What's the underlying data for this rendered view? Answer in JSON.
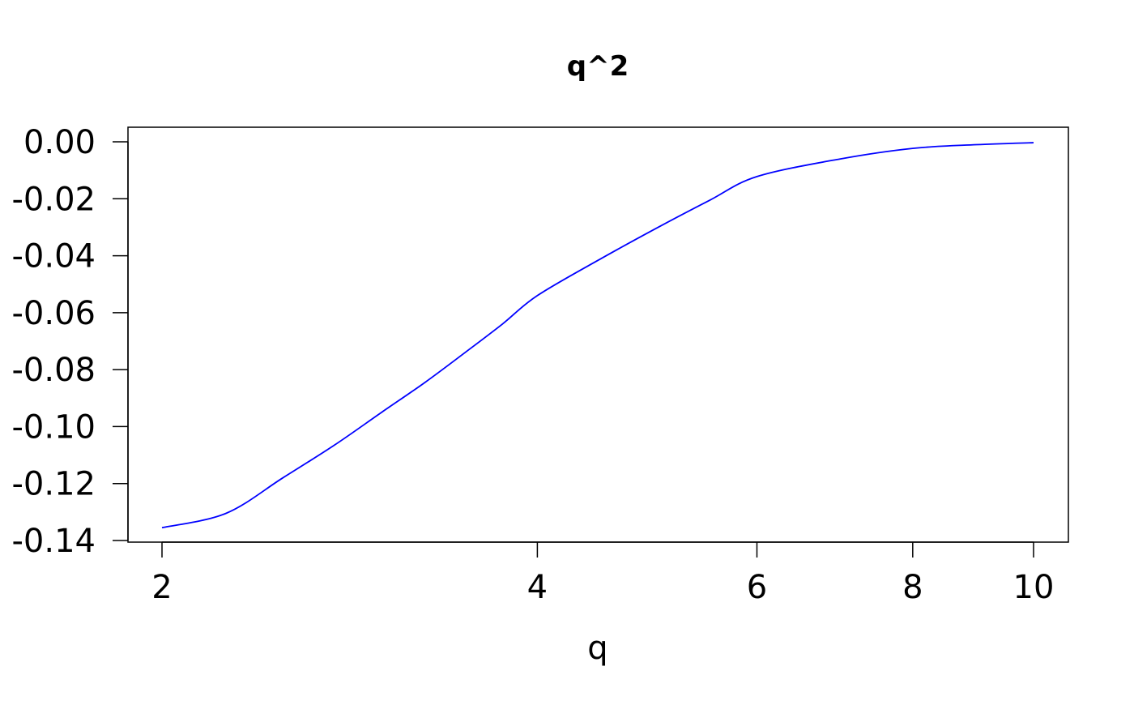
{
  "chart_data": {
    "type": "line",
    "title": "q^2",
    "xlabel": "q",
    "ylabel": "",
    "x_scale": "log",
    "xlim": [
      2,
      10
    ],
    "ylim": [
      -0.14,
      0.0
    ],
    "x_ticks": [
      2,
      4,
      6,
      8,
      10
    ],
    "x_tick_labels": [
      "2",
      "4",
      "6",
      "8",
      "10"
    ],
    "y_ticks": [
      0.0,
      -0.02,
      -0.04,
      -0.06,
      -0.08,
      -0.1,
      -0.12,
      -0.14
    ],
    "y_tick_labels": [
      "0.00",
      "-0.02",
      "-0.04",
      "-0.06",
      "-0.08",
      "-0.10",
      "-0.12",
      "-0.14"
    ],
    "grid": false,
    "line_color": "#0000ff",
    "series": [
      {
        "x": [
          2,
          2.25,
          2.5,
          2.75,
          3,
          3.25,
          3.5,
          3.75,
          4,
          4.5,
          5,
          5.5,
          6,
          7,
          8,
          9,
          10
        ],
        "y": [
          -0.1355,
          -0.1305,
          -0.118,
          -0.1065,
          -0.095,
          -0.0845,
          -0.074,
          -0.064,
          -0.054,
          -0.041,
          -0.03,
          -0.0205,
          -0.0122,
          -0.006,
          -0.0023,
          -0.001,
          -0.0003
        ]
      }
    ]
  }
}
